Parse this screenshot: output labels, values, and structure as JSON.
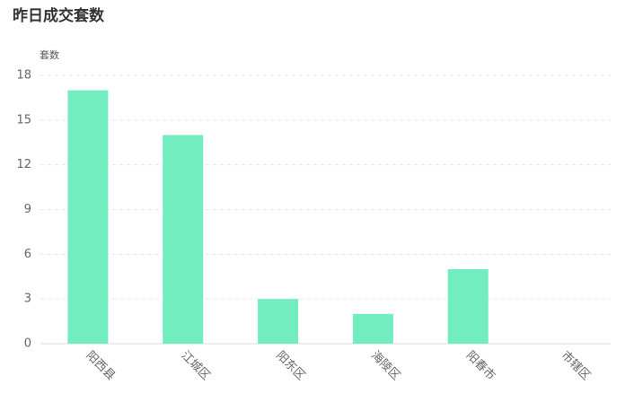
{
  "chart_data": {
    "type": "bar",
    "title": "昨日成交套数",
    "y_label": "套数",
    "categories": [
      "阳西县",
      "江城区",
      "阳东区",
      "海陵区",
      "阳春市",
      "市辖区"
    ],
    "values": [
      17,
      14,
      3,
      2,
      5,
      0
    ],
    "color": "#72edbf",
    "ylim": [
      0,
      18
    ],
    "yticks": [
      0,
      3,
      6,
      9,
      12,
      15,
      18
    ],
    "grid": true
  }
}
